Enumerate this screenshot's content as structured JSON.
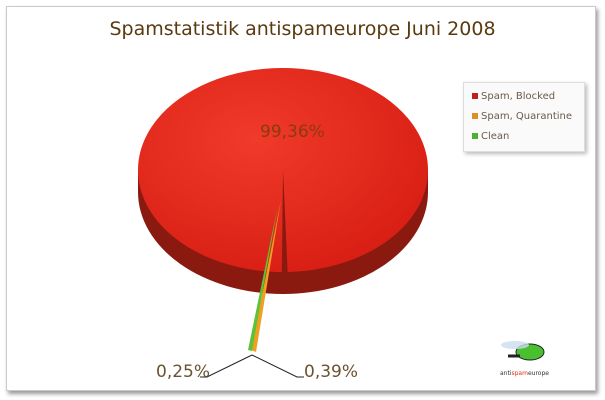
{
  "chart_data": {
    "type": "pie",
    "title": "Spamstatistik antispameurope Juni 2008",
    "slices": [
      {
        "name": "Spam, Blocked",
        "value": 99.36,
        "label": "99,36%",
        "color": "#e8261c"
      },
      {
        "name": "Spam, Quarantine",
        "value": 0.39,
        "label": "0,39%",
        "color": "#f0a020"
      },
      {
        "name": "Clean",
        "value": 0.25,
        "label": "0,25%",
        "color": "#5cc23a"
      }
    ],
    "legend_placement": "right",
    "style": "3d-exploded"
  },
  "logo": {
    "text_pre": "anti",
    "text_mid": "spam",
    "text_post": "europe"
  }
}
